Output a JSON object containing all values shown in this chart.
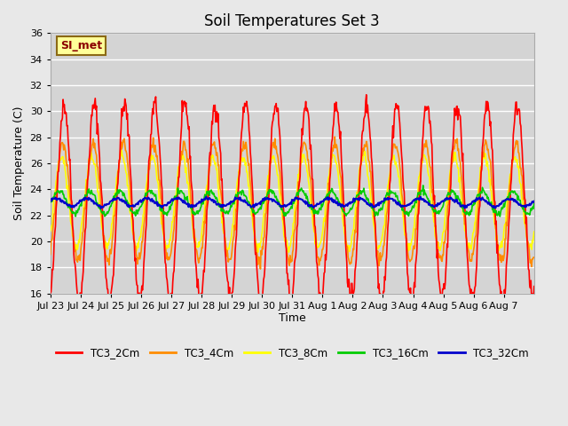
{
  "title": "Soil Temperatures Set 3",
  "xlabel": "Time",
  "ylabel": "Soil Temperature (C)",
  "ylim": [
    16,
    36
  ],
  "yticks": [
    16,
    18,
    20,
    22,
    24,
    26,
    28,
    30,
    32,
    34,
    36
  ],
  "background_color": "#e8e8e8",
  "plot_bg_color": "#d4d4d4",
  "grid_color": "#ffffff",
  "annotation_label": "SI_met",
  "annotation_bg": "#ffff99",
  "annotation_border": "#8b6914",
  "annotation_text_color": "#8b0000",
  "series_colors": [
    "#ff0000",
    "#ff8c00",
    "#ffff00",
    "#00cc00",
    "#0000cc"
  ],
  "series_lw": [
    1.2,
    1.2,
    1.2,
    1.2,
    1.5
  ],
  "legend_labels": [
    "TC3_2Cm",
    "TC3_4Cm",
    "TC3_8Cm",
    "TC3_16Cm",
    "TC3_32Cm"
  ],
  "x_tick_labels": [
    "Jul 23",
    "Jul 24",
    "Jul 25",
    "Jul 26",
    "Jul 27",
    "Jul 28",
    "Jul 29",
    "Jul 30",
    "Jul 31",
    "Aug 1",
    "Aug 2",
    "Aug 3",
    "Aug 4",
    "Aug 5",
    "Aug 6",
    "Aug 7"
  ],
  "num_days": 16,
  "hours_per_day": 24,
  "samples_per_hour": 2
}
